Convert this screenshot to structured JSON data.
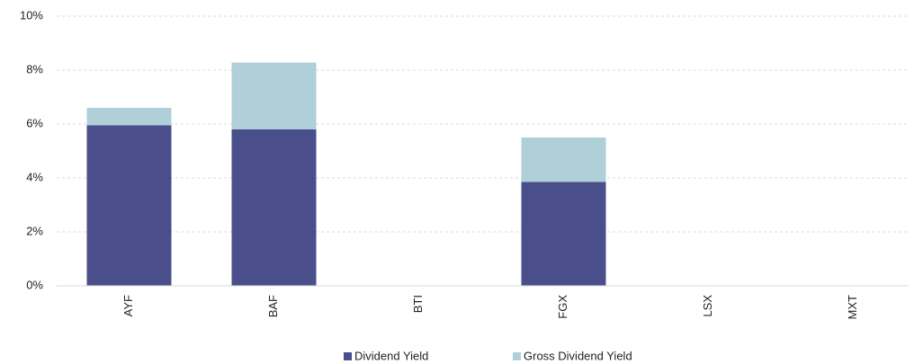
{
  "chart_data": {
    "type": "stacked-bar",
    "categories": [
      "AYF",
      "BAF",
      "BTI",
      "FGX",
      "LSX",
      "MXT"
    ],
    "series": [
      {
        "name": "Dividend Yield",
        "color": "#4a4e8a",
        "values": [
          5.95,
          5.8,
          null,
          3.85,
          null,
          null
        ]
      },
      {
        "name": "Gross Dividend Yield",
        "color": "#afcfd9",
        "values": [
          0.65,
          2.48,
          null,
          1.65,
          null,
          null
        ]
      }
    ],
    "ylim": [
      0,
      10
    ],
    "yticks": [
      {
        "value": 0,
        "label": "0%"
      },
      {
        "value": 2,
        "label": "2%"
      },
      {
        "value": 4,
        "label": "4%"
      },
      {
        "value": 6,
        "label": "6%"
      },
      {
        "value": 8,
        "label": "8%"
      },
      {
        "value": 10,
        "label": "10%"
      }
    ],
    "grid": true,
    "legend": "bottom"
  }
}
